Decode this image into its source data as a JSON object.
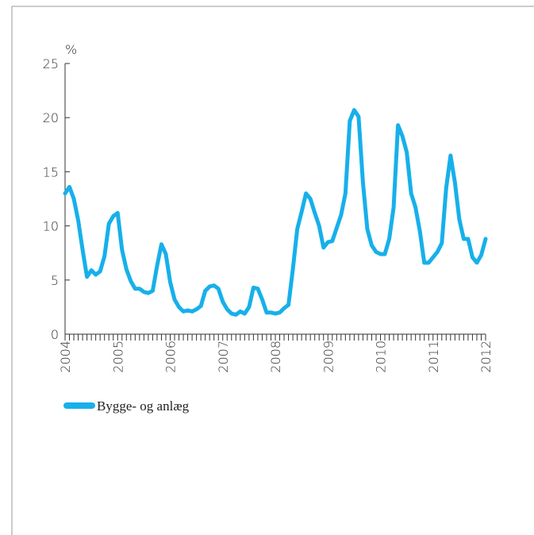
{
  "chart_data": {
    "type": "line",
    "y_label": "%",
    "categories": [
      "2004",
      null,
      null,
      null,
      null,
      null,
      null,
      null,
      null,
      null,
      null,
      null,
      "2005",
      null,
      null,
      null,
      null,
      null,
      null,
      null,
      null,
      null,
      null,
      null,
      "2006",
      null,
      null,
      null,
      null,
      null,
      null,
      null,
      null,
      null,
      null,
      null,
      "2007",
      null,
      null,
      null,
      null,
      null,
      null,
      null,
      null,
      null,
      null,
      null,
      "2008",
      null,
      null,
      null,
      null,
      null,
      null,
      null,
      null,
      null,
      null,
      null,
      "2009",
      null,
      null,
      null,
      null,
      null,
      null,
      null,
      null,
      null,
      null,
      null,
      "2010",
      null,
      null,
      null,
      null,
      null,
      null,
      null,
      null,
      null,
      null,
      null,
      "2011",
      null,
      null,
      null,
      null,
      null,
      null,
      null,
      null,
      null,
      null,
      null,
      "2012"
    ],
    "series": [
      {
        "name": "Bygge- og anlæg",
        "color": "#17b0ea",
        "values": [
          13,
          13.6,
          12.5,
          10.5,
          7.8,
          5.3,
          5.9,
          5.5,
          5.8,
          7.2,
          10.2,
          10.9,
          11.2,
          7.8,
          6.0,
          4.9,
          4.2,
          4.2,
          3.9,
          3.8,
          4.0,
          6.3,
          8.3,
          7.4,
          4.8,
          3.2,
          2.5,
          2.1,
          2.2,
          2.1,
          2.3,
          2.6,
          4.0,
          4.4,
          4.5,
          4.2,
          3.0,
          2.3,
          1.9,
          1.8,
          2.1,
          1.9,
          2.5,
          4.3,
          4.2,
          3.2,
          2.0,
          2.0,
          1.9,
          2.0,
          2.4,
          2.7,
          6.0,
          9.7,
          11.3,
          13.0,
          12.5,
          11.2,
          10.0,
          8.0,
          8.5,
          8.6,
          9.8,
          11.0,
          13.0,
          19.7,
          20.7,
          20.1,
          14.0,
          9.7,
          8.2,
          7.6,
          7.4,
          7.4,
          8.8,
          11.7,
          19.3,
          18.3,
          16.8,
          13.0,
          11.7,
          9.5,
          6.6,
          6.6,
          7.1,
          7.6,
          8.4,
          13.5,
          16.5,
          14.0,
          10.6,
          8.8,
          8.8,
          7.1,
          6.6,
          7.3,
          8.8
        ]
      }
    ],
    "ylim": [
      0,
      25
    ],
    "yticks": [
      0,
      5,
      10,
      15,
      20,
      25
    ]
  }
}
